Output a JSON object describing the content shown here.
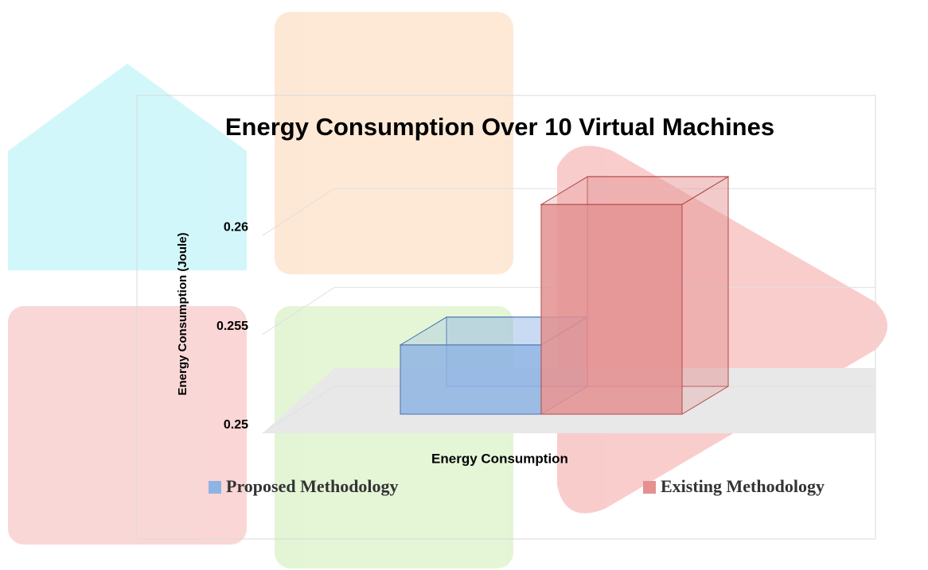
{
  "chart_data": {
    "type": "bar3d",
    "title": "Energy Consumption Over 10 Virtual Machines",
    "y_label": "Energy Consumption (Joule)",
    "categories": [
      "Energy Consumption"
    ],
    "series": [
      {
        "name": "Proposed Methodology",
        "color": "#8eb4e3",
        "values": [
          0.2535
        ]
      },
      {
        "name": "Existing Methodology",
        "color": "#e39191",
        "values": [
          0.2606
        ]
      }
    ],
    "ylim": [
      0.25,
      0.2625
    ],
    "yticks": [
      0.25,
      0.255,
      0.26
    ],
    "grid": true
  }
}
